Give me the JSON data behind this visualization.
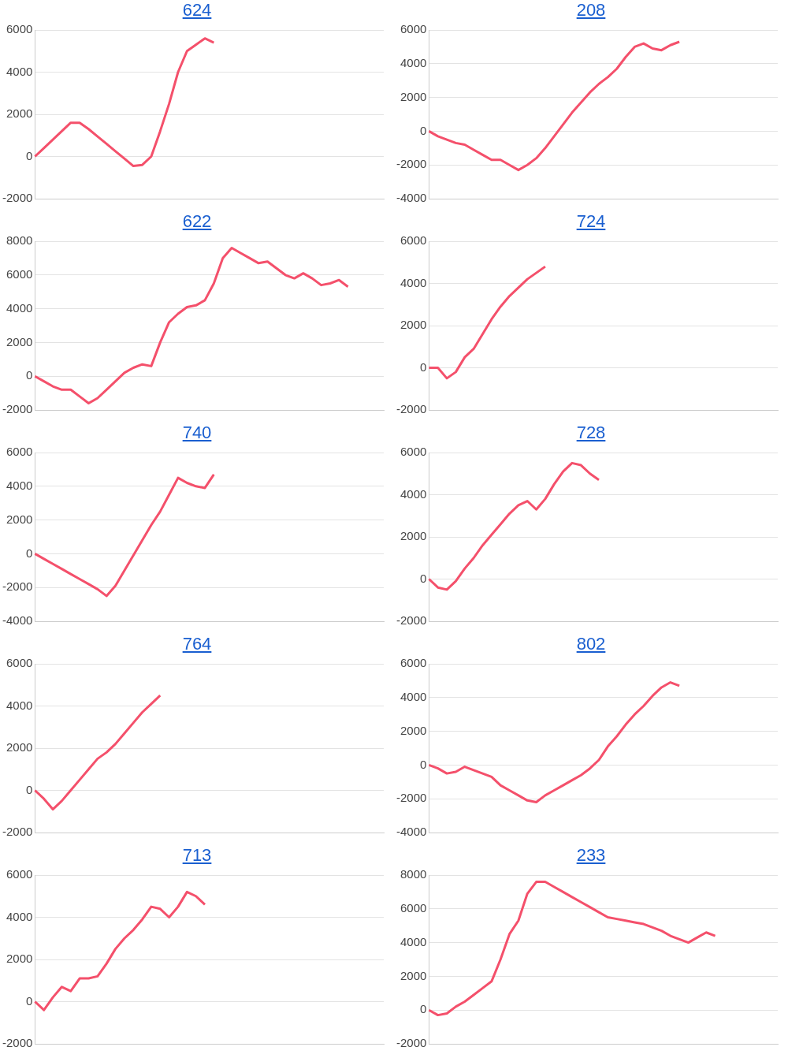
{
  "chart_data": [
    {
      "type": "line",
      "title": "624",
      "categories": [
        null,
        null,
        null,
        null,
        null,
        null,
        null,
        null,
        null,
        null,
        null,
        null,
        null,
        null,
        null,
        null,
        null,
        null,
        null,
        null,
        null,
        null,
        null,
        null,
        null,
        null,
        null,
        null,
        null,
        null,
        null,
        null,
        null,
        null,
        null,
        null,
        null,
        null,
        null,
        null
      ],
      "series": [
        {
          "color": "#f4506b",
          "values": [
            0,
            400,
            800,
            1200,
            1600,
            1600,
            1300,
            950,
            600,
            250,
            -100,
            -450,
            -400,
            0,
            1200,
            2500,
            4000,
            5000,
            5300,
            5600,
            5400,
            null,
            null,
            null,
            null,
            null,
            null,
            null,
            null,
            null,
            null,
            null,
            null,
            null,
            null,
            null,
            null,
            null,
            null,
            null
          ]
        }
      ],
      "ylim": [
        -2000,
        6000
      ],
      "yticks": [
        -2000,
        0,
        2000,
        4000,
        6000
      ],
      "grid": "y",
      "tick_labels": "y",
      "legend": false,
      "marker": "none",
      "line_style": "solid"
    },
    {
      "type": "line",
      "title": "208",
      "categories": [
        null,
        null,
        null,
        null,
        null,
        null,
        null,
        null,
        null,
        null,
        null,
        null,
        null,
        null,
        null,
        null,
        null,
        null,
        null,
        null,
        null,
        null,
        null,
        null,
        null,
        null,
        null,
        null,
        null,
        null,
        null,
        null,
        null,
        null,
        null,
        null,
        null,
        null,
        null,
        null
      ],
      "series": [
        {
          "color": "#f4506b",
          "values": [
            0,
            -300,
            -500,
            -700,
            -800,
            -1100,
            -1400,
            -1700,
            -1700,
            -2000,
            -2300,
            -2000,
            -1600,
            -1000,
            -300,
            400,
            1100,
            1700,
            2300,
            2800,
            3200,
            3700,
            4400,
            5000,
            5200,
            4900,
            4800,
            5100,
            5300,
            null,
            null,
            null,
            null,
            null,
            null,
            null,
            null,
            null,
            null,
            null
          ]
        }
      ],
      "ylim": [
        -4000,
        6000
      ],
      "yticks": [
        -4000,
        -2000,
        0,
        2000,
        4000,
        6000
      ],
      "grid": "y",
      "tick_labels": "y",
      "legend": false,
      "marker": "none",
      "line_style": "solid"
    },
    {
      "type": "line",
      "title": "622",
      "categories": [
        null,
        null,
        null,
        null,
        null,
        null,
        null,
        null,
        null,
        null,
        null,
        null,
        null,
        null,
        null,
        null,
        null,
        null,
        null,
        null,
        null,
        null,
        null,
        null,
        null,
        null,
        null,
        null,
        null,
        null,
        null,
        null,
        null,
        null,
        null,
        null,
        null,
        null,
        null,
        null
      ],
      "series": [
        {
          "color": "#f4506b",
          "values": [
            0,
            -300,
            -600,
            -800,
            -800,
            -1200,
            -1600,
            -1300,
            -800,
            -300,
            200,
            500,
            700,
            600,
            2000,
            3200,
            3700,
            4100,
            4200,
            4500,
            5500,
            7000,
            7600,
            7300,
            7000,
            6700,
            6800,
            6400,
            6000,
            5800,
            6100,
            5800,
            5400,
            5500,
            5700,
            5300,
            null,
            null,
            null,
            null
          ]
        }
      ],
      "ylim": [
        -2000,
        8000
      ],
      "yticks": [
        -2000,
        0,
        2000,
        4000,
        6000,
        8000
      ],
      "grid": "y",
      "tick_labels": "y",
      "legend": false,
      "marker": "none",
      "line_style": "solid"
    },
    {
      "type": "line",
      "title": "724",
      "categories": [
        null,
        null,
        null,
        null,
        null,
        null,
        null,
        null,
        null,
        null,
        null,
        null,
        null,
        null,
        null,
        null,
        null,
        null,
        null,
        null,
        null,
        null,
        null,
        null,
        null,
        null,
        null,
        null,
        null,
        null,
        null,
        null,
        null,
        null,
        null,
        null,
        null,
        null,
        null,
        null
      ],
      "series": [
        {
          "color": "#f4506b",
          "values": [
            0,
            0,
            -500,
            -200,
            500,
            900,
            1600,
            2300,
            2900,
            3400,
            3800,
            4200,
            4500,
            4800,
            null,
            null,
            null,
            null,
            null,
            null,
            null,
            null,
            null,
            null,
            null,
            null,
            null,
            null,
            null,
            null,
            null,
            null,
            null,
            null,
            null,
            null,
            null,
            null,
            null,
            null
          ]
        }
      ],
      "ylim": [
        -2000,
        6000
      ],
      "yticks": [
        -2000,
        0,
        2000,
        4000,
        6000
      ],
      "grid": "y",
      "tick_labels": "y",
      "legend": false,
      "marker": "none",
      "line_style": "solid"
    },
    {
      "type": "line",
      "title": "740",
      "categories": [
        null,
        null,
        null,
        null,
        null,
        null,
        null,
        null,
        null,
        null,
        null,
        null,
        null,
        null,
        null,
        null,
        null,
        null,
        null,
        null,
        null,
        null,
        null,
        null,
        null,
        null,
        null,
        null,
        null,
        null,
        null,
        null,
        null,
        null,
        null,
        null,
        null,
        null,
        null,
        null
      ],
      "series": [
        {
          "color": "#f4506b",
          "values": [
            0,
            -300,
            -600,
            -900,
            -1200,
            -1500,
            -1800,
            -2100,
            -2500,
            -1900,
            -1000,
            -100,
            800,
            1700,
            2500,
            3500,
            4500,
            4200,
            4000,
            3900,
            4700,
            null,
            null,
            null,
            null,
            null,
            null,
            null,
            null,
            null,
            null,
            null,
            null,
            null,
            null,
            null,
            null,
            null,
            null,
            null
          ]
        }
      ],
      "ylim": [
        -4000,
        6000
      ],
      "yticks": [
        -4000,
        -2000,
        0,
        2000,
        4000,
        6000
      ],
      "grid": "y",
      "tick_labels": "y",
      "legend": false,
      "marker": "none",
      "line_style": "solid"
    },
    {
      "type": "line",
      "title": "728",
      "categories": [
        null,
        null,
        null,
        null,
        null,
        null,
        null,
        null,
        null,
        null,
        null,
        null,
        null,
        null,
        null,
        null,
        null,
        null,
        null,
        null,
        null,
        null,
        null,
        null,
        null,
        null,
        null,
        null,
        null,
        null,
        null,
        null,
        null,
        null,
        null,
        null,
        null,
        null,
        null,
        null
      ],
      "series": [
        {
          "color": "#f4506b",
          "values": [
            0,
            -400,
            -500,
            -100,
            500,
            1000,
            1600,
            2100,
            2600,
            3100,
            3500,
            3700,
            3300,
            3800,
            4500,
            5100,
            5500,
            5400,
            5000,
            4700,
            null,
            null,
            null,
            null,
            null,
            null,
            null,
            null,
            null,
            null,
            null,
            null,
            null,
            null,
            null,
            null,
            null,
            null,
            null,
            null
          ]
        }
      ],
      "ylim": [
        -2000,
        6000
      ],
      "yticks": [
        -2000,
        0,
        2000,
        4000,
        6000
      ],
      "grid": "y",
      "tick_labels": "y",
      "legend": false,
      "marker": "none",
      "line_style": "solid"
    },
    {
      "type": "line",
      "title": "764",
      "categories": [
        null,
        null,
        null,
        null,
        null,
        null,
        null,
        null,
        null,
        null,
        null,
        null,
        null,
        null,
        null,
        null,
        null,
        null,
        null,
        null,
        null,
        null,
        null,
        null,
        null,
        null,
        null,
        null,
        null,
        null,
        null,
        null,
        null,
        null,
        null,
        null,
        null,
        null,
        null,
        null
      ],
      "series": [
        {
          "color": "#f4506b",
          "values": [
            0,
            -400,
            -900,
            -500,
            0,
            500,
            1000,
            1500,
            1800,
            2200,
            2700,
            3200,
            3700,
            4100,
            4500,
            null,
            null,
            null,
            null,
            null,
            null,
            null,
            null,
            null,
            null,
            null,
            null,
            null,
            null,
            null,
            null,
            null,
            null,
            null,
            null,
            null,
            null,
            null,
            null,
            null
          ]
        }
      ],
      "ylim": [
        -2000,
        6000
      ],
      "yticks": [
        -2000,
        0,
        2000,
        4000,
        6000
      ],
      "grid": "y",
      "tick_labels": "y",
      "legend": false,
      "marker": "none",
      "line_style": "solid"
    },
    {
      "type": "line",
      "title": "802",
      "categories": [
        null,
        null,
        null,
        null,
        null,
        null,
        null,
        null,
        null,
        null,
        null,
        null,
        null,
        null,
        null,
        null,
        null,
        null,
        null,
        null,
        null,
        null,
        null,
        null,
        null,
        null,
        null,
        null,
        null,
        null,
        null,
        null,
        null,
        null,
        null,
        null,
        null,
        null,
        null,
        null
      ],
      "series": [
        {
          "color": "#f4506b",
          "values": [
            0,
            -200,
            -500,
            -400,
            -100,
            -300,
            -500,
            -700,
            -1200,
            -1500,
            -1800,
            -2100,
            -2200,
            -1800,
            -1500,
            -1200,
            -900,
            -600,
            -200,
            300,
            1100,
            1700,
            2400,
            3000,
            3500,
            4100,
            4600,
            4900,
            4700,
            null,
            null,
            null,
            null,
            null,
            null,
            null,
            null,
            null,
            null,
            null
          ]
        }
      ],
      "ylim": [
        -4000,
        6000
      ],
      "yticks": [
        -4000,
        -2000,
        0,
        2000,
        4000,
        6000
      ],
      "grid": "y",
      "tick_labels": "y",
      "legend": false,
      "marker": "none",
      "line_style": "solid"
    },
    {
      "type": "line",
      "title": "713",
      "categories": [
        null,
        null,
        null,
        null,
        null,
        null,
        null,
        null,
        null,
        null,
        null,
        null,
        null,
        null,
        null,
        null,
        null,
        null,
        null,
        null,
        null,
        null,
        null,
        null,
        null,
        null,
        null,
        null,
        null,
        null,
        null,
        null,
        null,
        null,
        null,
        null,
        null,
        null,
        null,
        null
      ],
      "series": [
        {
          "color": "#f4506b",
          "values": [
            0,
            -400,
            200,
            700,
            500,
            1100,
            1100,
            1200,
            1800,
            2500,
            3000,
            3400,
            3900,
            4500,
            4400,
            4000,
            4500,
            5200,
            5000,
            4600,
            null,
            null,
            null,
            null,
            null,
            null,
            null,
            null,
            null,
            null,
            null,
            null,
            null,
            null,
            null,
            null,
            null,
            null,
            null,
            null
          ]
        }
      ],
      "ylim": [
        -2000,
        6000
      ],
      "yticks": [
        -2000,
        0,
        2000,
        4000,
        6000
      ],
      "grid": "y",
      "tick_labels": "y",
      "legend": false,
      "marker": "none",
      "line_style": "solid"
    },
    {
      "type": "line",
      "title": "233",
      "categories": [
        null,
        null,
        null,
        null,
        null,
        null,
        null,
        null,
        null,
        null,
        null,
        null,
        null,
        null,
        null,
        null,
        null,
        null,
        null,
        null,
        null,
        null,
        null,
        null,
        null,
        null,
        null,
        null,
        null,
        null,
        null,
        null,
        null,
        null,
        null,
        null,
        null,
        null,
        null,
        null
      ],
      "series": [
        {
          "color": "#f4506b",
          "values": [
            0,
            -300,
            -200,
            200,
            500,
            900,
            1300,
            1700,
            3000,
            4500,
            5300,
            6900,
            7600,
            7600,
            7300,
            7000,
            6700,
            6400,
            6100,
            5800,
            5500,
            5400,
            5300,
            5200,
            5100,
            4900,
            4700,
            4400,
            4200,
            4000,
            4300,
            4600,
            4400,
            null,
            null,
            null,
            null,
            null,
            null,
            null
          ]
        }
      ],
      "ylim": [
        -2000,
        8000
      ],
      "yticks": [
        -2000,
        0,
        2000,
        4000,
        6000,
        8000
      ],
      "grid": "y",
      "tick_labels": "y",
      "legend": false,
      "marker": "none",
      "line_style": "solid"
    }
  ]
}
